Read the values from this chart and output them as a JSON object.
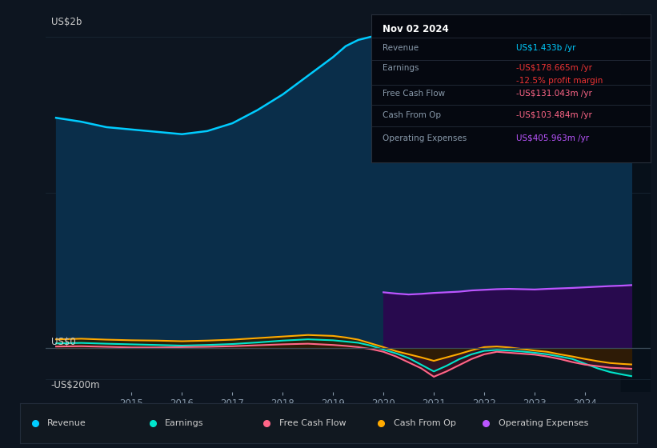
{
  "bg_color": "#0d1520",
  "chart_bg": "#0d1520",
  "shade_color": "#07101a",
  "grid_color": "#1a2a38",
  "zero_line_color": "#3a4a58",
  "x_min": 2013.3,
  "x_max": 2025.3,
  "y_min": -280,
  "y_max": 2150,
  "shade_start": 2024.72,
  "x_ticks": [
    2015,
    2016,
    2017,
    2018,
    2019,
    2020,
    2021,
    2022,
    2023,
    2024
  ],
  "years": [
    2013.5,
    2014.0,
    2014.5,
    2015.0,
    2015.5,
    2016.0,
    2016.5,
    2017.0,
    2017.5,
    2018.0,
    2018.5,
    2019.0,
    2019.25,
    2019.5,
    2019.75,
    2020.0,
    2020.25,
    2020.5,
    2020.75,
    2021.0,
    2021.25,
    2021.5,
    2021.75,
    2022.0,
    2022.25,
    2022.5,
    2022.75,
    2023.0,
    2023.25,
    2023.5,
    2023.75,
    2024.0,
    2024.25,
    2024.5,
    2024.75,
    2024.92
  ],
  "revenue": [
    1480,
    1455,
    1420,
    1405,
    1390,
    1375,
    1395,
    1445,
    1530,
    1630,
    1750,
    1870,
    1940,
    1980,
    2000,
    1990,
    1870,
    1680,
    1430,
    1290,
    1370,
    1530,
    1700,
    1850,
    1900,
    1880,
    1820,
    1770,
    1740,
    1700,
    1650,
    1600,
    1560,
    1510,
    1470,
    1433
  ],
  "earnings": [
    32,
    35,
    30,
    26,
    22,
    18,
    22,
    28,
    38,
    50,
    58,
    52,
    44,
    36,
    18,
    -8,
    -32,
    -62,
    -105,
    -148,
    -112,
    -70,
    -38,
    -16,
    -10,
    -14,
    -20,
    -28,
    -38,
    -52,
    -68,
    -98,
    -128,
    -152,
    -168,
    -178
  ],
  "fcf": [
    12,
    14,
    10,
    6,
    6,
    8,
    10,
    14,
    20,
    26,
    30,
    22,
    16,
    8,
    -4,
    -22,
    -52,
    -90,
    -128,
    -182,
    -148,
    -108,
    -68,
    -38,
    -22,
    -28,
    -34,
    -40,
    -52,
    -68,
    -88,
    -104,
    -114,
    -124,
    -128,
    -131
  ],
  "cash_op": [
    58,
    62,
    56,
    52,
    50,
    46,
    50,
    56,
    66,
    76,
    86,
    80,
    70,
    56,
    32,
    8,
    -18,
    -38,
    -58,
    -80,
    -58,
    -36,
    -12,
    8,
    12,
    6,
    -4,
    -14,
    -22,
    -38,
    -52,
    -68,
    -82,
    -94,
    -100,
    -103
  ],
  "opex": [
    0,
    0,
    0,
    0,
    0,
    0,
    0,
    0,
    0,
    0,
    0,
    0,
    0,
    0,
    0,
    360,
    352,
    346,
    350,
    356,
    360,
    364,
    372,
    376,
    380,
    382,
    380,
    378,
    382,
    385,
    388,
    392,
    396,
    400,
    403,
    406
  ],
  "rev_line": "#00ccff",
  "rev_fill": "#0a2e4a",
  "earn_line": "#00e5cc",
  "earn_fill": "#0a3530",
  "fcf_line": "#ff6688",
  "fcf_fill": "#3a0e1e",
  "cop_line": "#ffaa00",
  "cop_fill": "#2e1e00",
  "opex_line": "#bb55ff",
  "opex_fill": "#280a4e",
  "info_bg": "#050810",
  "info_border": "#282e3a",
  "legend_bg": "#111820",
  "legend_border": "#222c3a",
  "title_text": "Nov 02 2024",
  "rev_label": "Revenue",
  "rev_value": "US$1.433b /yr",
  "rev_val_color": "#00ccff",
  "earn_label": "Earnings",
  "earn_value": "-US$178.665m /yr",
  "earn_val_color": "#ee3333",
  "margin_value": "-12.5% profit margin",
  "margin_color": "#ee3333",
  "fcf_label": "Free Cash Flow",
  "fcf_value": "-US$131.043m /yr",
  "fcf_val_color": "#ff6688",
  "cop_label": "Cash From Op",
  "cop_value": "-US$103.484m /yr",
  "cop_val_color": "#ff6688",
  "opex_label": "Operating Expenses",
  "opex_value": "US$405.963m /yr",
  "opex_val_color": "#bb55ff",
  "ylabel_2b": "US$2b",
  "ylabel_0": "US$0",
  "ylabel_n200": "-US$200m",
  "tick_color": "#8899aa",
  "label_color": "#cccccc"
}
